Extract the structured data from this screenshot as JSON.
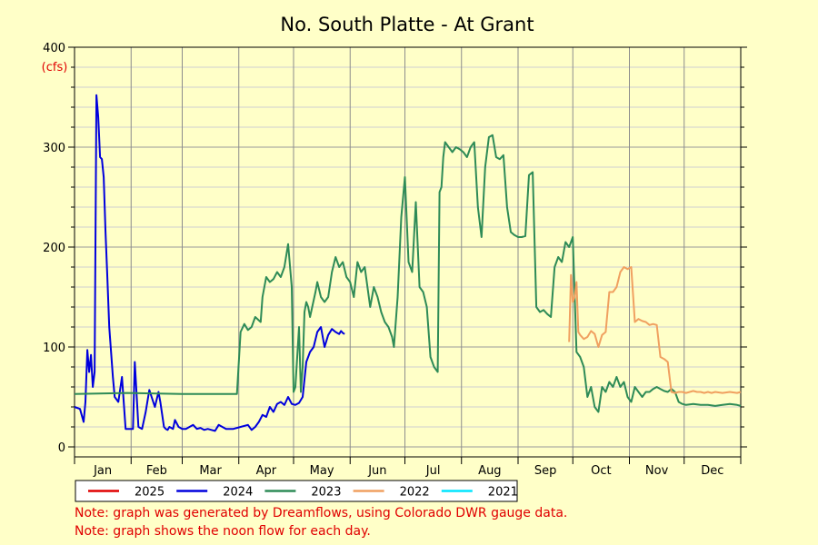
{
  "chart_data": {
    "type": "line",
    "title": "No. South Platte - At Grant",
    "ylabel": "(cfs)",
    "ylim": [
      0,
      400
    ],
    "yticks": [
      0,
      100,
      200,
      300,
      400
    ],
    "xlim": [
      1,
      366
    ],
    "month_labels": [
      "Jan",
      "Feb",
      "Mar",
      "Apr",
      "May",
      "Jun",
      "Jul",
      "Aug",
      "Sep",
      "Oct",
      "Nov",
      "Dec"
    ],
    "grid": true,
    "legend_position": "bottom",
    "series": [
      {
        "name": "2025",
        "color": "#e00000",
        "x": [],
        "y": []
      },
      {
        "name": "2024",
        "color": "#0000dd",
        "x": [
          1,
          4,
          6,
          7,
          8,
          9,
          10,
          11,
          12,
          13,
          14,
          15,
          16,
          17,
          18,
          19,
          20,
          21,
          22,
          23,
          25,
          27,
          29,
          30,
          31,
          32,
          33,
          34,
          36,
          38,
          40,
          42,
          45,
          47,
          48,
          50,
          51,
          52,
          53,
          55,
          56,
          58,
          60,
          62,
          64,
          66,
          68,
          70,
          72,
          74,
          76,
          78,
          80,
          84,
          88,
          92,
          96,
          98,
          100,
          102,
          104,
          106,
          108,
          110,
          112,
          114,
          116,
          118,
          120,
          122,
          124,
          126,
          128,
          130,
          132,
          134,
          136,
          138,
          140,
          142,
          144,
          146,
          147,
          148,
          149
        ],
        "y": [
          40,
          38,
          25,
          45,
          97,
          75,
          92,
          60,
          75,
          352,
          330,
          290,
          288,
          270,
          215,
          170,
          120,
          95,
          70,
          50,
          45,
          70,
          18,
          18,
          18,
          18,
          18,
          85,
          20,
          18,
          35,
          57,
          40,
          55,
          45,
          20,
          18,
          17,
          20,
          18,
          27,
          20,
          18,
          18,
          20,
          22,
          18,
          19,
          17,
          18,
          17,
          16,
          22,
          18,
          18,
          20,
          22,
          17,
          20,
          25,
          32,
          30,
          40,
          35,
          43,
          45,
          42,
          50,
          43,
          42,
          44,
          50,
          85,
          95,
          100,
          115,
          120,
          100,
          112,
          118,
          115,
          113,
          116,
          114,
          113
        ]
      },
      {
        "name": "2023",
        "color": "#2e8b57",
        "x": [
          1,
          30,
          60,
          90,
          92,
          94,
          96,
          98,
          100,
          103,
          104,
          106,
          108,
          110,
          112,
          114,
          116,
          118,
          120,
          121,
          122,
          124,
          125,
          126,
          127,
          128,
          129,
          130,
          133,
          134,
          136,
          138,
          140,
          142,
          144,
          146,
          148,
          150,
          152,
          154,
          156,
          158,
          160,
          163,
          165,
          167,
          169,
          171,
          173,
          175,
          176,
          178,
          180,
          182,
          184,
          186,
          188,
          190,
          192,
          194,
          196,
          198,
          200,
          201,
          202,
          203,
          204,
          206,
          208,
          210,
          212,
          214,
          216,
          218,
          220,
          222,
          224,
          226,
          228,
          230,
          232,
          234,
          236,
          238,
          240,
          242,
          244,
          246,
          248,
          250,
          252,
          254,
          256,
          258,
          260,
          262,
          264,
          266,
          268,
          270,
          272,
          274,
          276,
          278,
          280,
          282,
          284,
          286,
          288,
          290,
          292,
          294,
          296,
          298,
          300,
          302,
          304,
          306,
          308,
          310,
          312,
          314,
          316,
          318,
          320,
          322,
          324,
          326,
          328,
          330,
          332,
          334,
          336,
          340,
          344,
          348,
          352,
          356,
          360,
          364,
          366
        ],
        "y": [
          53,
          54,
          53,
          53,
          115,
          123,
          117,
          120,
          130,
          125,
          150,
          170,
          165,
          168,
          175,
          170,
          180,
          203,
          160,
          55,
          60,
          120,
          55,
          80,
          135,
          145,
          140,
          130,
          155,
          165,
          150,
          145,
          150,
          175,
          190,
          180,
          185,
          170,
          165,
          150,
          185,
          175,
          180,
          140,
          160,
          150,
          135,
          125,
          120,
          110,
          100,
          150,
          230,
          270,
          185,
          175,
          245,
          160,
          155,
          140,
          90,
          80,
          75,
          255,
          260,
          290,
          305,
          300,
          295,
          300,
          298,
          295,
          290,
          300,
          305,
          240,
          210,
          280,
          310,
          312,
          290,
          288,
          292,
          240,
          215,
          212,
          210,
          210,
          211,
          272,
          275,
          140,
          135,
          137,
          133,
          130,
          180,
          190,
          185,
          205,
          200,
          210,
          95,
          90,
          80,
          50,
          60,
          40,
          35,
          60,
          55,
          65,
          60,
          70,
          60,
          65,
          50,
          45,
          60,
          55,
          50,
          55,
          55,
          58,
          60,
          58,
          56,
          55,
          58,
          55,
          45,
          43,
          42,
          43,
          42,
          42,
          41,
          42,
          43,
          42,
          41
        ]
      },
      {
        "name": "2022",
        "color": "#f0a060",
        "x": [
          272,
          273,
          274,
          275,
          276,
          277,
          278,
          280,
          282,
          284,
          286,
          288,
          290,
          292,
          294,
          296,
          298,
          300,
          302,
          304,
          306,
          308,
          310,
          312,
          314,
          316,
          318,
          320,
          322,
          324,
          326,
          328,
          330,
          332,
          334,
          336,
          338,
          340,
          342,
          344,
          346,
          348,
          350,
          352,
          356,
          360,
          364,
          366
        ],
        "y": [
          105,
          172,
          145,
          150,
          165,
          115,
          112,
          108,
          110,
          116,
          113,
          100,
          112,
          115,
          155,
          155,
          160,
          175,
          180,
          178,
          180,
          125,
          128,
          126,
          125,
          122,
          123,
          122,
          90,
          88,
          85,
          55,
          54,
          55,
          55,
          54,
          55,
          56,
          55,
          55,
          54,
          55,
          54,
          55,
          54,
          55,
          54,
          55
        ]
      },
      {
        "name": "2021",
        "color": "#00e5ff",
        "x": [],
        "y": []
      }
    ]
  },
  "notes": [
    "Note: graph was generated by Dreamflows, using Colorado DWR gauge data.",
    "Note: graph shows the noon flow for each day."
  ]
}
